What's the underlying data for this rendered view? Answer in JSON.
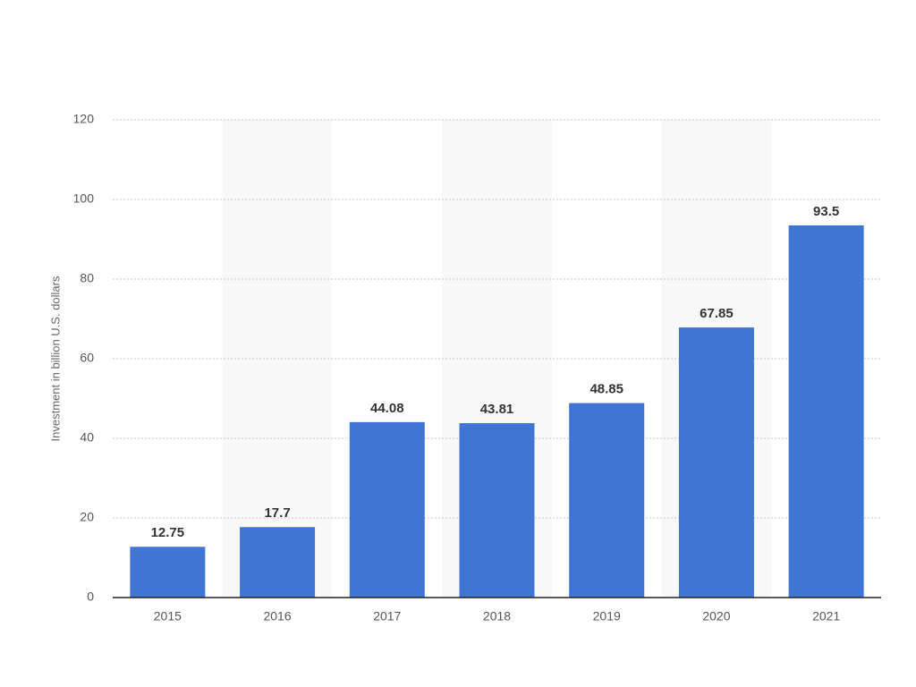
{
  "chart_data": {
    "type": "bar",
    "y_label": "Investment in billion U.S. dollars",
    "categories": [
      "2015",
      "2016",
      "2017",
      "2018",
      "2019",
      "2020",
      "2021"
    ],
    "values": [
      12.75,
      17.7,
      44.08,
      43.81,
      48.85,
      67.85,
      93.5
    ],
    "color": "#4075d6",
    "ylim": [
      0,
      120
    ],
    "yticks": [
      0,
      20,
      40,
      60,
      80,
      100,
      120
    ],
    "grid": true
  }
}
